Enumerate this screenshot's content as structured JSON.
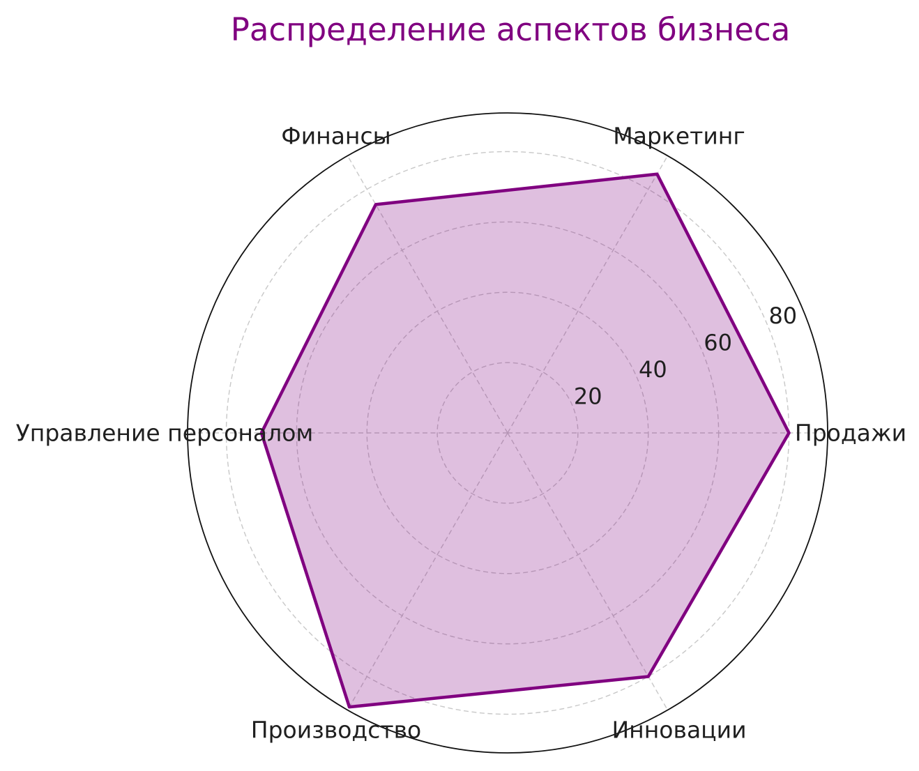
{
  "chart_data": {
    "type": "radar",
    "title": "Распределение аспектов бизнеса",
    "categories": [
      "Продажи",
      "Маркетинг",
      "Финансы",
      "Управление персоналом",
      "Производство",
      "Инновации"
    ],
    "values": [
      80,
      85,
      75,
      70,
      90,
      80
    ],
    "angles_deg": [
      0,
      60,
      120,
      180,
      240,
      300
    ],
    "r_ticks": [
      20,
      40,
      60,
      80
    ],
    "rlim": [
      0,
      91
    ],
    "r_tick_angle_deg": 22.5,
    "grid": "dashed-circles-and-spokes",
    "legend": "none",
    "colors": {
      "title": "#800080",
      "line": "#800080",
      "fill": "#800080",
      "fill_opacity": 0.25,
      "grid": "#c8c8c8",
      "outline": "#111111",
      "text": "#1f1f1f"
    }
  }
}
